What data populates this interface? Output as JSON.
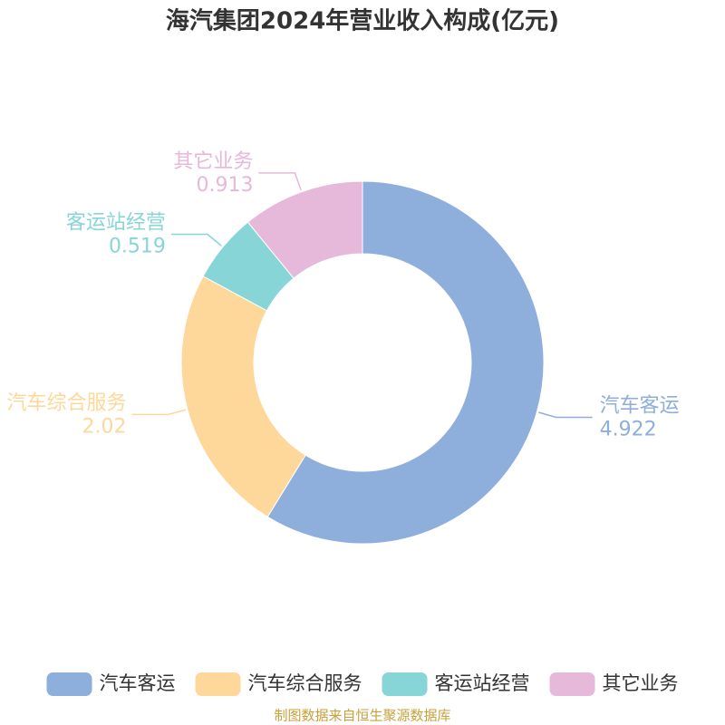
{
  "chart_data": {
    "type": "pie",
    "title": "海汽集团2024年营业收入构成(亿元)",
    "categories": [
      "汽车客运",
      "汽车综合服务",
      "客运站经营",
      "其它业务"
    ],
    "values": [
      4.922,
      2.02,
      0.519,
      0.913
    ],
    "colors": [
      "#8eaedb",
      "#fed89a",
      "#88d5d8",
      "#e6b8d9"
    ],
    "source": "制图数据来自恒生聚源数据库"
  }
}
